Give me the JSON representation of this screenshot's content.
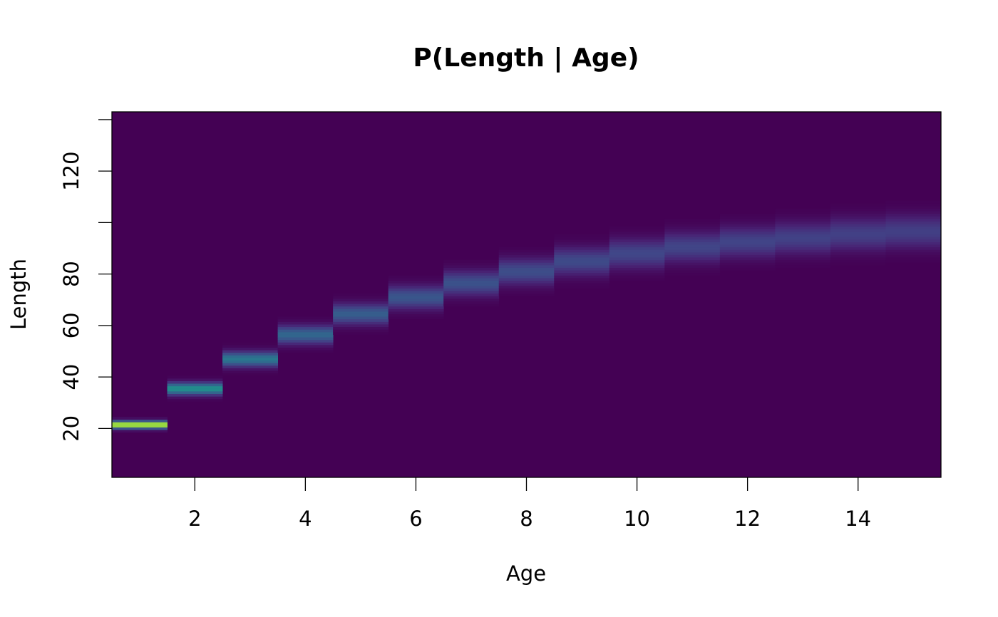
{
  "chart_data": {
    "type": "heatmap",
    "title": "P(Length | Age)",
    "xlabel": "Age",
    "ylabel": "Length",
    "xlim": [
      0.5,
      15.5
    ],
    "ylim": [
      1,
      143
    ],
    "x_ticks": [
      2,
      4,
      6,
      8,
      10,
      12,
      14
    ],
    "x_tick_labels": [
      "2",
      "4",
      "6",
      "8",
      "10",
      "12",
      "14"
    ],
    "y_ticks": [
      20,
      40,
      60,
      80,
      100,
      120,
      140
    ],
    "y_tick_labels": [
      "20",
      "40",
      "60",
      "80",
      "",
      "120",
      ""
    ],
    "grid": false,
    "colormap": "viridis",
    "background_color": "#440154",
    "ages": [
      1,
      2,
      3,
      4,
      5,
      6,
      7,
      8,
      9,
      10,
      11,
      12,
      13,
      14,
      15
    ],
    "mean_length": [
      21.5,
      35.5,
      47,
      56.5,
      64.5,
      71,
      76.5,
      81,
      85,
      88,
      90.5,
      92.5,
      94,
      95.5,
      96.5
    ],
    "sd_length": [
      1.0,
      1.6,
      2.0,
      2.4,
      2.7,
      3.0,
      3.2,
      3.4,
      3.6,
      3.8,
      3.9,
      4.0,
      4.1,
      4.2,
      4.3
    ],
    "peak_density": [
      0.4,
      0.25,
      0.2,
      0.165,
      0.148,
      0.133,
      0.125,
      0.117,
      0.111,
      0.105,
      0.102,
      0.1,
      0.097,
      0.095,
      0.093
    ],
    "color_max": 0.4
  }
}
